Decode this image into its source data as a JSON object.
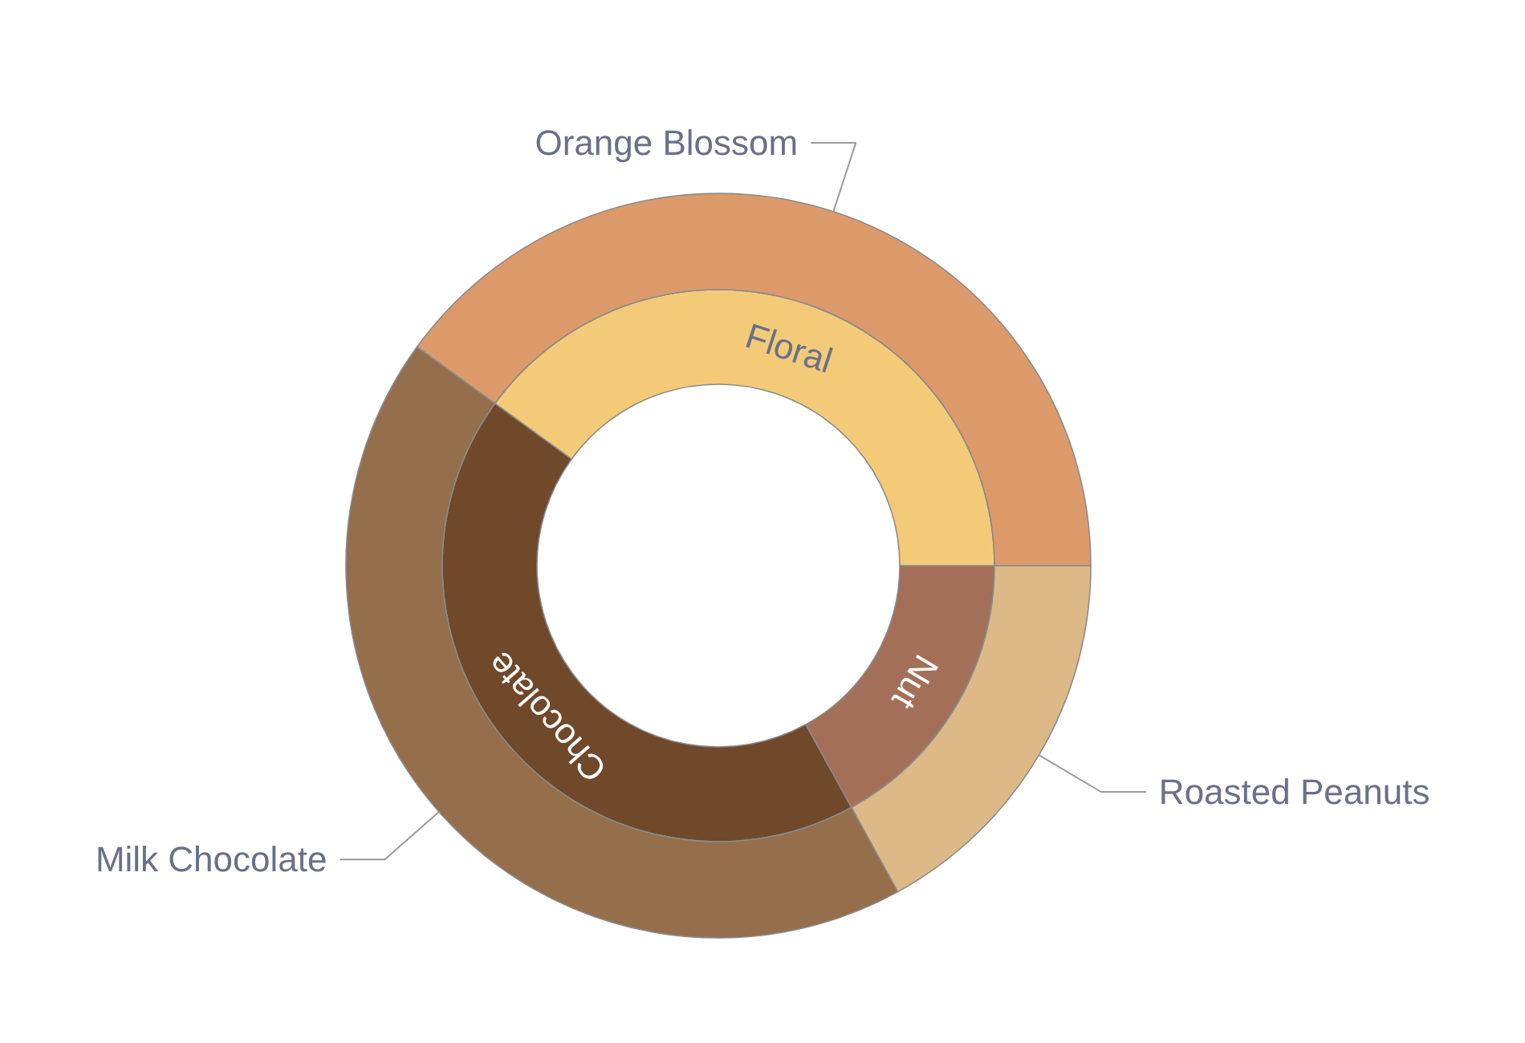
{
  "chart_data": {
    "type": "donut",
    "categories": [
      "Roasted Peanuts",
      "Milk Chocolate",
      "Orange Blossom"
    ],
    "series": [
      {
        "values": [
          17,
          43,
          40
        ],
        "colors": [
          "#a46f59",
          "#70482a",
          "#f3cb78"
        ],
        "value_labels": [
          "Nut",
          "Chocolate",
          "Floral"
        ]
      },
      {
        "values": [
          17,
          43,
          40
        ],
        "colors": [
          "#ddb988",
          "#956e4b",
          "#dc9a6b"
        ]
      }
    ]
  }
}
